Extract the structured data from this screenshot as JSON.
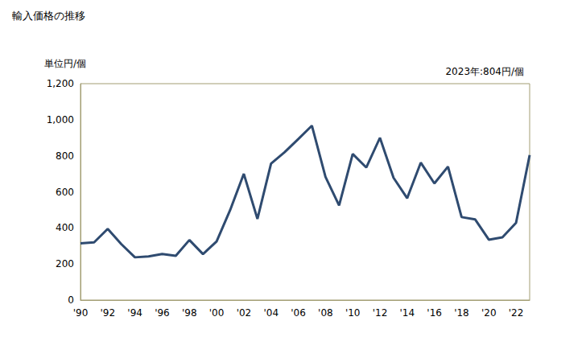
{
  "chart_data": {
    "type": "line",
    "title": "輸入価格の推移",
    "ylabel": "単位円/個",
    "annotations": [
      "2023年:804円/個"
    ],
    "categories": [
      "'90",
      null,
      "'92",
      null,
      "'94",
      null,
      "'96",
      null,
      "'98",
      null,
      "'00",
      null,
      "'02",
      null,
      "'04",
      null,
      "'06",
      null,
      "'08",
      null,
      "'10",
      null,
      "'12",
      null,
      "'14",
      null,
      "'16",
      null,
      "'18",
      null,
      "'20",
      null,
      "'22",
      null
    ],
    "values": [
      315,
      320,
      395,
      310,
      237,
      242,
      255,
      245,
      333,
      255,
      325,
      500,
      700,
      450,
      757,
      820,
      893,
      967,
      683,
      525,
      810,
      735,
      900,
      678,
      565,
      762,
      647,
      740,
      460,
      447,
      335,
      348,
      428,
      804
    ],
    "color": "#2f4b70",
    "ylim": [
      0,
      1200
    ],
    "yticks": [
      0,
      200,
      400,
      600,
      800,
      {
        "value": 1000,
        "label": "1,000"
      },
      {
        "value": 1200,
        "label": "1,200"
      }
    ],
    "grid": false
  }
}
